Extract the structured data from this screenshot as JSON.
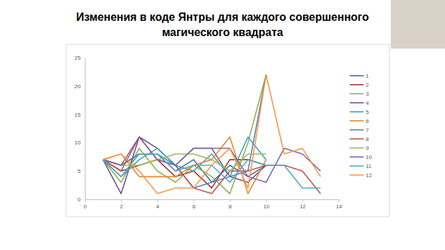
{
  "chart_data": {
    "type": "line",
    "title": "Изменения в коде Янтры для каждого совершенного магического квадрата",
    "x": [
      1,
      2,
      3,
      4,
      5,
      6,
      7,
      8,
      9,
      10,
      11,
      12,
      13
    ],
    "xlim": [
      0,
      14
    ],
    "xticks": [
      0,
      2,
      4,
      6,
      8,
      10,
      12,
      14
    ],
    "ylim": [
      0,
      25
    ],
    "yticks": [
      0,
      5,
      10,
      15,
      20,
      25
    ],
    "grid": false,
    "legend": "right",
    "series": [
      {
        "name": "1",
        "color": "#3b6aa0",
        "values": [
          7,
          6,
          8,
          8,
          5,
          7,
          3,
          6,
          4,
          6,
          null,
          null,
          null
        ]
      },
      {
        "name": "2",
        "color": "#a8302c",
        "values": [
          7,
          5,
          6,
          7,
          4,
          5,
          2,
          7,
          7,
          6,
          null,
          null,
          null
        ]
      },
      {
        "name": "3",
        "color": "#8db04a",
        "values": [
          7,
          3,
          9,
          5,
          3,
          6,
          4,
          1,
          10,
          22,
          null,
          null,
          null
        ]
      },
      {
        "name": "4",
        "color": "#6c4f8e",
        "values": [
          7,
          1,
          11,
          9,
          6,
          9,
          9,
          4,
          3,
          6,
          null,
          null,
          null
        ]
      },
      {
        "name": "5",
        "color": "#3ea1bb",
        "values": [
          7,
          4,
          7,
          9,
          6,
          5,
          8,
          4,
          11,
          7,
          null,
          null,
          null
        ]
      },
      {
        "name": "6",
        "color": "#e8872e",
        "values": [
          7,
          8,
          4,
          4,
          4,
          6,
          7,
          11,
          1,
          7,
          null,
          null,
          null
        ]
      },
      {
        "name": "7",
        "color": "#4f81bd",
        "values": [
          7,
          6,
          8,
          8,
          6,
          2,
          3,
          4,
          5,
          22,
          null,
          null,
          null
        ]
      },
      {
        "name": "8",
        "color": "#c0504d",
        "values": [
          7,
          5,
          11,
          7,
          6,
          2,
          1,
          5,
          5,
          6,
          6,
          5,
          1
        ]
      },
      {
        "name": "9",
        "color": "#9bbb59",
        "values": [
          7,
          6,
          6,
          7,
          8,
          8,
          7,
          5,
          8,
          8,
          null,
          null,
          null
        ]
      },
      {
        "name": "10",
        "color": "#8064a2",
        "values": [
          7,
          6,
          11,
          7,
          6,
          9,
          9,
          9,
          4,
          3,
          9,
          8,
          5
        ]
      },
      {
        "name": "11",
        "color": "#4bacc6",
        "values": [
          7,
          4,
          8,
          8,
          5,
          6,
          6,
          3,
          7,
          6,
          6,
          2,
          2
        ]
      },
      {
        "name": "12",
        "color": "#f79646",
        "values": [
          7,
          8,
          5,
          1,
          2,
          2,
          6,
          9,
          2,
          22,
          8,
          9,
          4
        ]
      }
    ]
  }
}
